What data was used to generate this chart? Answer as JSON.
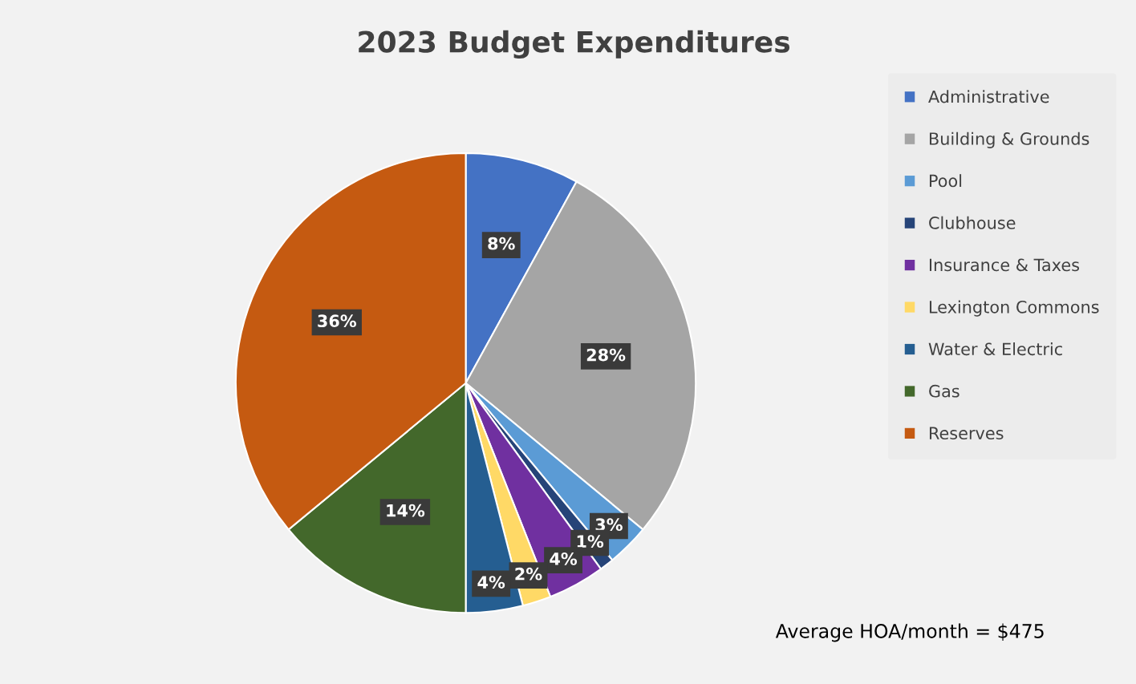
{
  "chart_data": {
    "type": "pie",
    "title": "2023 Budget Expenditures",
    "categories": [
      "Administrative",
      "Building & Grounds",
      "Pool",
      "Clubhouse",
      "Insurance & Taxes",
      "Lexington Commons",
      "Water & Electric",
      "Gas",
      "Reserves"
    ],
    "values": [
      8,
      28,
      3,
      1,
      4,
      2,
      4,
      14,
      36
    ],
    "value_labels": [
      "8%",
      "28%",
      "3%",
      "1%",
      "4%",
      "2%",
      "4%",
      "14%",
      "36%"
    ],
    "colors": [
      "#4472c4",
      "#a5a5a5",
      "#5b9bd5",
      "#264478",
      "#7030a0",
      "#ffd966",
      "#255e91",
      "#43682b",
      "#c55a11"
    ],
    "legend": "right",
    "annotations": [
      "Average HOA/month = $475"
    ]
  }
}
